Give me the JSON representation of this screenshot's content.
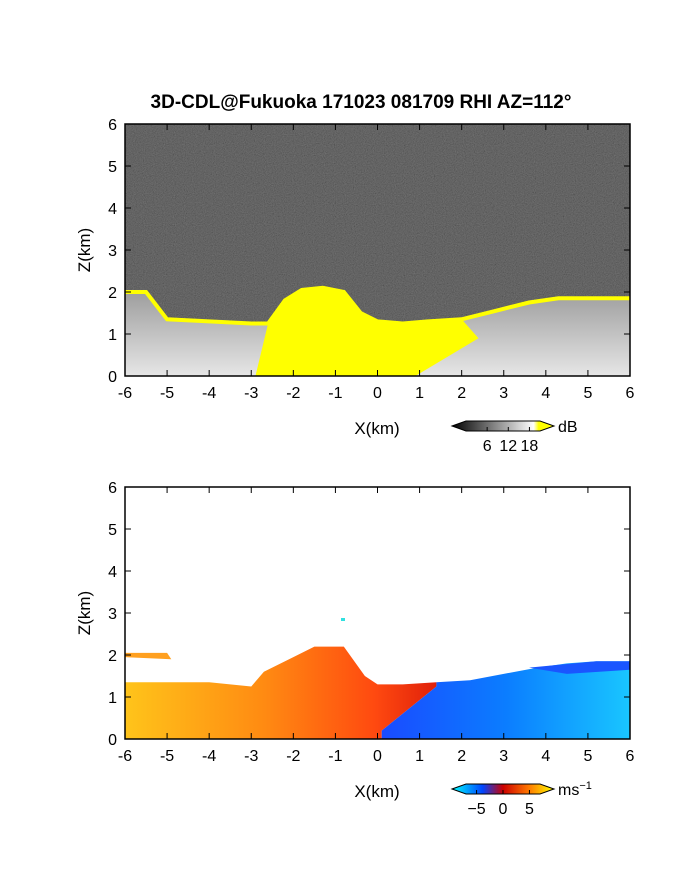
{
  "title": "3D-CDL@Fukuoka 171023 081709 RHI AZ=112°",
  "chart_data": [
    {
      "type": "heatmap",
      "panel": "reflectivity",
      "xlabel": "X(km)",
      "ylabel": "Z(km)",
      "xlim": [
        -6,
        6
      ],
      "ylim": [
        0,
        6
      ],
      "xticks": [
        "-6",
        "-5",
        "-4",
        "-3",
        "-2",
        "-1",
        "0",
        "1",
        "2",
        "3",
        "4",
        "5",
        "6"
      ],
      "yticks": [
        "0",
        "1",
        "2",
        "3",
        "4",
        "5",
        "6"
      ],
      "colorbar": {
        "unit": "dB",
        "ticks": [
          "6",
          "12",
          "18"
        ],
        "tick_values": [
          6,
          12,
          18
        ],
        "range": [
          0,
          21
        ],
        "colors": [
          "#000000",
          "#ffffff",
          "#ffff00"
        ]
      },
      "colormap": "grayscale with yellow above ~18 dB",
      "echo_top_km": [
        [
          -6,
          2.0
        ],
        [
          -5.5,
          2.0
        ],
        [
          -5.0,
          1.35
        ],
        [
          -4,
          1.3
        ],
        [
          -3,
          1.25
        ],
        [
          -2.6,
          1.25
        ],
        [
          -2.2,
          1.8
        ],
        [
          -1.8,
          2.05
        ],
        [
          -1.3,
          2.1
        ],
        [
          -0.8,
          2.0
        ],
        [
          -0.4,
          1.5
        ],
        [
          0,
          1.3
        ],
        [
          0.6,
          1.25
        ],
        [
          1.2,
          1.3
        ],
        [
          2,
          1.35
        ],
        [
          2.8,
          1.55
        ],
        [
          3.6,
          1.75
        ],
        [
          4.3,
          1.85
        ],
        [
          5.0,
          1.85
        ],
        [
          6,
          1.85
        ]
      ]
    },
    {
      "type": "heatmap",
      "panel": "doppler_velocity",
      "xlabel": "X(km)",
      "ylabel": "Z(km)",
      "xlim": [
        -6,
        6
      ],
      "ylim": [
        0,
        6
      ],
      "xticks": [
        "-6",
        "-5",
        "-4",
        "-3",
        "-2",
        "-1",
        "0",
        "1",
        "2",
        "3",
        "4",
        "5",
        "6"
      ],
      "yticks": [
        "0",
        "1",
        "2",
        "3",
        "4",
        "5",
        "6"
      ],
      "colorbar": {
        "unit": "ms",
        "unit_sup": "−1",
        "ticks": [
          "−5",
          "0",
          "5"
        ],
        "tick_values": [
          -5,
          0,
          5
        ],
        "range": [
          -7,
          7
        ],
        "colors": [
          "#00ffff",
          "#0044ff",
          "#cc0000",
          "#ff7700",
          "#ffff00"
        ]
      },
      "colormap": "cyan-blue (negative) to red-orange-yellow (positive)",
      "echo_top_km": [
        [
          -6,
          1.35
        ],
        [
          -5.0,
          1.35
        ],
        [
          -4,
          1.35
        ],
        [
          -3,
          1.25
        ],
        [
          -2.7,
          1.6
        ],
        [
          -2.0,
          1.95
        ],
        [
          -1.5,
          2.2
        ],
        [
          -0.8,
          2.2
        ],
        [
          -0.3,
          1.5
        ],
        [
          0,
          1.3
        ],
        [
          0.6,
          1.3
        ],
        [
          1.4,
          1.35
        ],
        [
          2.2,
          1.4
        ],
        [
          3.0,
          1.55
        ],
        [
          3.8,
          1.7
        ],
        [
          4.5,
          1.8
        ],
        [
          5.2,
          1.85
        ],
        [
          6,
          1.85
        ]
      ],
      "velocity_sign_boundary_x_km": 0.1
    }
  ]
}
